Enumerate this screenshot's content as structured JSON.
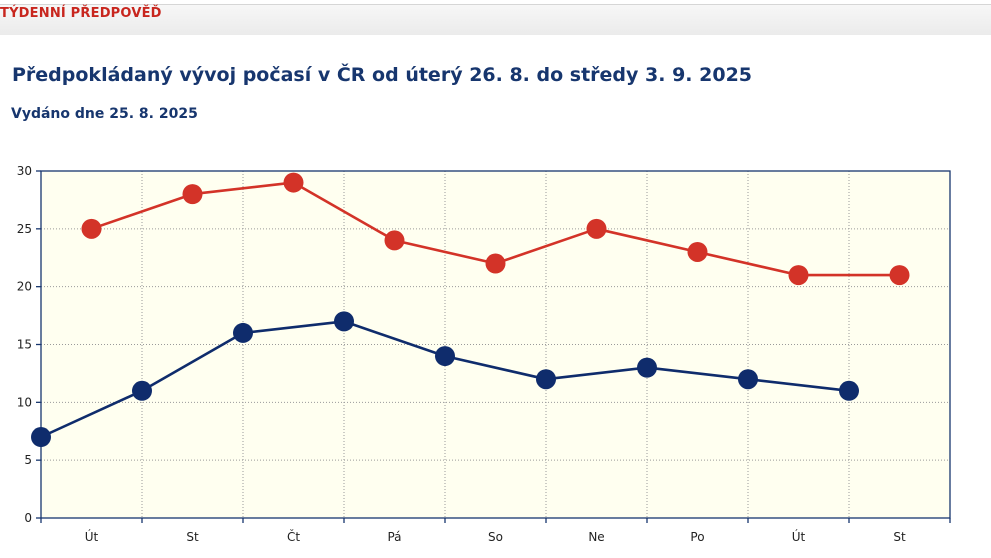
{
  "header": {
    "section_title": "TÝDENNÍ PŘEDPOVĚĎ"
  },
  "forecast": {
    "title": "Předpokládaný vývoj počasí v ČR od úterý 26. 8. do středy 3. 9. 2025",
    "issued": "Vydáno dne 25. 8. 2025"
  },
  "chart_data": {
    "type": "line",
    "categories": [
      "Út",
      "St",
      "Čt",
      "Pá",
      "So",
      "Ne",
      "Po",
      "Út",
      "St"
    ],
    "ylim": [
      0,
      30
    ],
    "yticks": [
      0,
      5,
      10,
      15,
      20,
      25,
      30
    ],
    "grid": true,
    "colors": {
      "plot_background": "#fffff0",
      "axis": "#17366e",
      "grid": "#9a9a9a",
      "max_series": "#d33328",
      "min_series": "#0f2c6c"
    },
    "series": [
      {
        "key": "max",
        "x": [
          0.5,
          1.5,
          2.5,
          3.5,
          4.5,
          5.5,
          6.5,
          7.5,
          8.5
        ],
        "values": [
          25,
          28,
          29,
          24,
          22,
          25,
          23,
          21,
          21
        ]
      },
      {
        "key": "min",
        "x": [
          0,
          1,
          2,
          3,
          4,
          5,
          6,
          7,
          8
        ],
        "values": [
          7,
          11,
          16,
          17,
          14,
          12,
          13,
          12,
          11
        ]
      }
    ]
  }
}
